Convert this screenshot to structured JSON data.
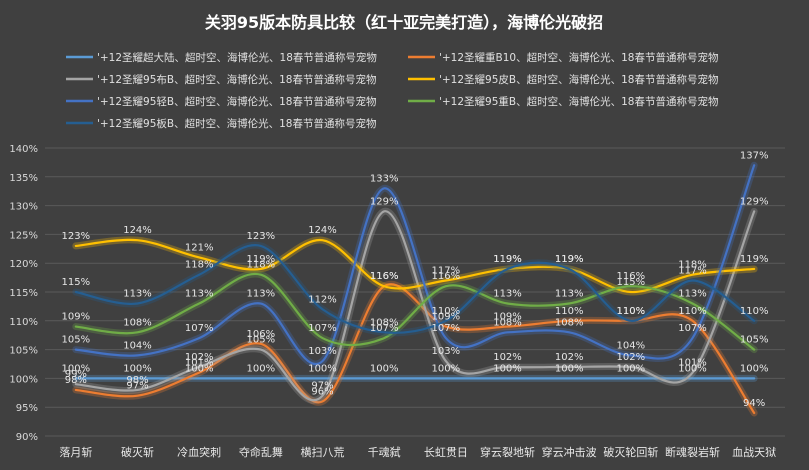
{
  "chart_data": {
    "type": "line",
    "title": "关羽95版本防具比较（红十亚完美打造），海博伦光破招",
    "xlabel": "",
    "ylabel": "",
    "categories": [
      "落月斩",
      "破灭斩",
      "冷血突刺",
      "夺命乱舞",
      "横扫八荒",
      "千魂弑",
      "长虹贯日",
      "穿云裂地斩",
      "穿云冲击波",
      "破灭轮回斩",
      "断魂裂岩斩",
      "血战天狱"
    ],
    "ylim": [
      90,
      140
    ],
    "yticks": [
      "90%",
      "95%",
      "100%",
      "105%",
      "110%",
      "115%",
      "120%",
      "125%",
      "130%",
      "135%",
      "140%"
    ],
    "grid": true,
    "legend_position": "top",
    "series": [
      {
        "name": "'+12圣耀超大陆、超时空、海博伦光、18春节普通称号宠物",
        "color": "#5B9BD5",
        "values": [
          100,
          100,
          100,
          100,
          100,
          100,
          100,
          100,
          100,
          100,
          100,
          100
        ],
        "labels": [
          "100%",
          "100%",
          "100%",
          "100%",
          "100%",
          "100%",
          "100%",
          "100%",
          "100%",
          "100%",
          "100%",
          "100%"
        ]
      },
      {
        "name": "'+12圣耀重B10、超时空、海博伦光、18春节普通称号宠物",
        "color": "#ED7D31",
        "values": [
          98,
          97,
          101,
          106,
          96,
          116,
          109,
          109,
          110,
          110,
          110,
          94
        ],
        "labels": [
          "98%",
          "97%",
          "101%",
          "106%",
          "96%",
          "116%",
          "109%",
          "109%",
          "110%",
          "110%",
          "110%",
          "94%"
        ]
      },
      {
        "name": "'+12圣耀95布B、超时空、海博伦光、18春节普通称号宠物",
        "color": "#A5A5A5",
        "values": [
          99,
          98,
          102,
          105,
          97,
          129,
          103,
          102,
          102,
          102,
          101,
          129
        ],
        "labels": [
          "99%",
          "98%",
          "102%",
          "105%",
          "97%",
          "129%",
          "103%",
          "102%",
          "102%",
          "102%",
          "101%",
          "129%"
        ]
      },
      {
        "name": "'+12圣耀95皮B、超时空、海博伦光、18春节普通称号宠物",
        "color": "#FFC000",
        "values": [
          123,
          124,
          121,
          119,
          124,
          116,
          117,
          119,
          119,
          115,
          118,
          119
        ],
        "labels": [
          "123%",
          "124%",
          "121%",
          "119%",
          "124%",
          "116%",
          "117%",
          "119%",
          "119%",
          "115%",
          "118%",
          "119%"
        ]
      },
      {
        "name": "'+12圣耀95轻B、超时空、海博伦光、18春节普通称号宠物",
        "color": "#4472C4",
        "values": [
          105,
          104,
          107,
          113,
          103,
          133,
          107,
          108,
          108,
          104,
          107,
          137
        ],
        "labels": [
          "105%",
          "104%",
          "107%",
          "113%",
          "103%",
          "133%",
          "107%",
          "108%",
          "108%",
          "104%",
          "107%",
          "137%"
        ]
      },
      {
        "name": "'+12圣耀95重B、超时空、海博伦光、18春节普通称号宠物",
        "color": "#70AD47",
        "values": [
          109,
          108,
          113,
          118,
          107,
          107,
          116,
          113,
          113,
          116,
          113,
          105
        ],
        "labels": [
          "109%",
          "108%",
          "113%",
          "118%",
          "107%",
          "107%",
          "116%",
          "113%",
          "113%",
          "116%",
          "113%",
          "105%"
        ]
      },
      {
        "name": "'+12圣耀95板B、超时空、海博伦光、18春节普通称号宠物",
        "color": "#255E91",
        "values": [
          115,
          113,
          118,
          123,
          112,
          108,
          110,
          119,
          119,
          110,
          117,
          110
        ],
        "labels": [
          "115%",
          "113%",
          "118%",
          "123%",
          "112%",
          "108%",
          "110%",
          "119%",
          "119%",
          "110%",
          "117%",
          "110%"
        ]
      }
    ]
  }
}
